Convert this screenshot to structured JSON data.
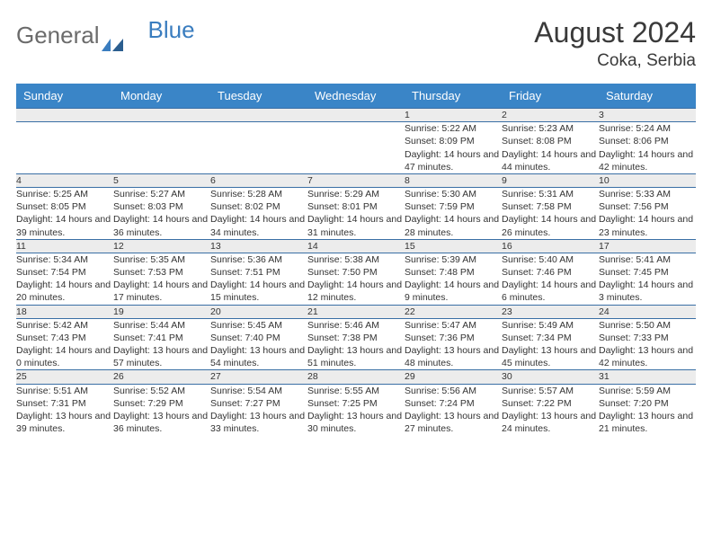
{
  "brand": {
    "part1": "General",
    "part2": "Blue"
  },
  "title": "August 2024",
  "location": "Coka, Serbia",
  "day_headers": [
    "Sunday",
    "Monday",
    "Tuesday",
    "Wednesday",
    "Thursday",
    "Friday",
    "Saturday"
  ],
  "colors": {
    "header_bg": "#3a85c7",
    "row_divider": "#3a6fa5",
    "daynum_bg": "#ececec",
    "text": "#333333",
    "brand_gray": "#6b6b6b",
    "brand_blue": "#3a7dbf"
  },
  "weeks": [
    [
      null,
      null,
      null,
      null,
      {
        "n": "1",
        "sr": "Sunrise: 5:22 AM",
        "ss": "Sunset: 8:09 PM",
        "dl": "Daylight: 14 hours and 47 minutes."
      },
      {
        "n": "2",
        "sr": "Sunrise: 5:23 AM",
        "ss": "Sunset: 8:08 PM",
        "dl": "Daylight: 14 hours and 44 minutes."
      },
      {
        "n": "3",
        "sr": "Sunrise: 5:24 AM",
        "ss": "Sunset: 8:06 PM",
        "dl": "Daylight: 14 hours and 42 minutes."
      }
    ],
    [
      {
        "n": "4",
        "sr": "Sunrise: 5:25 AM",
        "ss": "Sunset: 8:05 PM",
        "dl": "Daylight: 14 hours and 39 minutes."
      },
      {
        "n": "5",
        "sr": "Sunrise: 5:27 AM",
        "ss": "Sunset: 8:03 PM",
        "dl": "Daylight: 14 hours and 36 minutes."
      },
      {
        "n": "6",
        "sr": "Sunrise: 5:28 AM",
        "ss": "Sunset: 8:02 PM",
        "dl": "Daylight: 14 hours and 34 minutes."
      },
      {
        "n": "7",
        "sr": "Sunrise: 5:29 AM",
        "ss": "Sunset: 8:01 PM",
        "dl": "Daylight: 14 hours and 31 minutes."
      },
      {
        "n": "8",
        "sr": "Sunrise: 5:30 AM",
        "ss": "Sunset: 7:59 PM",
        "dl": "Daylight: 14 hours and 28 minutes."
      },
      {
        "n": "9",
        "sr": "Sunrise: 5:31 AM",
        "ss": "Sunset: 7:58 PM",
        "dl": "Daylight: 14 hours and 26 minutes."
      },
      {
        "n": "10",
        "sr": "Sunrise: 5:33 AM",
        "ss": "Sunset: 7:56 PM",
        "dl": "Daylight: 14 hours and 23 minutes."
      }
    ],
    [
      {
        "n": "11",
        "sr": "Sunrise: 5:34 AM",
        "ss": "Sunset: 7:54 PM",
        "dl": "Daylight: 14 hours and 20 minutes."
      },
      {
        "n": "12",
        "sr": "Sunrise: 5:35 AM",
        "ss": "Sunset: 7:53 PM",
        "dl": "Daylight: 14 hours and 17 minutes."
      },
      {
        "n": "13",
        "sr": "Sunrise: 5:36 AM",
        "ss": "Sunset: 7:51 PM",
        "dl": "Daylight: 14 hours and 15 minutes."
      },
      {
        "n": "14",
        "sr": "Sunrise: 5:38 AM",
        "ss": "Sunset: 7:50 PM",
        "dl": "Daylight: 14 hours and 12 minutes."
      },
      {
        "n": "15",
        "sr": "Sunrise: 5:39 AM",
        "ss": "Sunset: 7:48 PM",
        "dl": "Daylight: 14 hours and 9 minutes."
      },
      {
        "n": "16",
        "sr": "Sunrise: 5:40 AM",
        "ss": "Sunset: 7:46 PM",
        "dl": "Daylight: 14 hours and 6 minutes."
      },
      {
        "n": "17",
        "sr": "Sunrise: 5:41 AM",
        "ss": "Sunset: 7:45 PM",
        "dl": "Daylight: 14 hours and 3 minutes."
      }
    ],
    [
      {
        "n": "18",
        "sr": "Sunrise: 5:42 AM",
        "ss": "Sunset: 7:43 PM",
        "dl": "Daylight: 14 hours and 0 minutes."
      },
      {
        "n": "19",
        "sr": "Sunrise: 5:44 AM",
        "ss": "Sunset: 7:41 PM",
        "dl": "Daylight: 13 hours and 57 minutes."
      },
      {
        "n": "20",
        "sr": "Sunrise: 5:45 AM",
        "ss": "Sunset: 7:40 PM",
        "dl": "Daylight: 13 hours and 54 minutes."
      },
      {
        "n": "21",
        "sr": "Sunrise: 5:46 AM",
        "ss": "Sunset: 7:38 PM",
        "dl": "Daylight: 13 hours and 51 minutes."
      },
      {
        "n": "22",
        "sr": "Sunrise: 5:47 AM",
        "ss": "Sunset: 7:36 PM",
        "dl": "Daylight: 13 hours and 48 minutes."
      },
      {
        "n": "23",
        "sr": "Sunrise: 5:49 AM",
        "ss": "Sunset: 7:34 PM",
        "dl": "Daylight: 13 hours and 45 minutes."
      },
      {
        "n": "24",
        "sr": "Sunrise: 5:50 AM",
        "ss": "Sunset: 7:33 PM",
        "dl": "Daylight: 13 hours and 42 minutes."
      }
    ],
    [
      {
        "n": "25",
        "sr": "Sunrise: 5:51 AM",
        "ss": "Sunset: 7:31 PM",
        "dl": "Daylight: 13 hours and 39 minutes."
      },
      {
        "n": "26",
        "sr": "Sunrise: 5:52 AM",
        "ss": "Sunset: 7:29 PM",
        "dl": "Daylight: 13 hours and 36 minutes."
      },
      {
        "n": "27",
        "sr": "Sunrise: 5:54 AM",
        "ss": "Sunset: 7:27 PM",
        "dl": "Daylight: 13 hours and 33 minutes."
      },
      {
        "n": "28",
        "sr": "Sunrise: 5:55 AM",
        "ss": "Sunset: 7:25 PM",
        "dl": "Daylight: 13 hours and 30 minutes."
      },
      {
        "n": "29",
        "sr": "Sunrise: 5:56 AM",
        "ss": "Sunset: 7:24 PM",
        "dl": "Daylight: 13 hours and 27 minutes."
      },
      {
        "n": "30",
        "sr": "Sunrise: 5:57 AM",
        "ss": "Sunset: 7:22 PM",
        "dl": "Daylight: 13 hours and 24 minutes."
      },
      {
        "n": "31",
        "sr": "Sunrise: 5:59 AM",
        "ss": "Sunset: 7:20 PM",
        "dl": "Daylight: 13 hours and 21 minutes."
      }
    ]
  ]
}
